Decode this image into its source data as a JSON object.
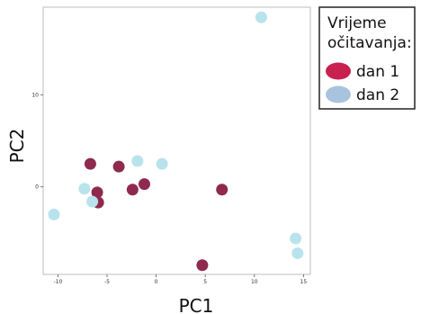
{
  "chart_data": {
    "type": "scatter",
    "xlabel": "PC1",
    "ylabel": "PC2",
    "xlim": [
      -11.5,
      15.7
    ],
    "ylim": [
      -9.5,
      19.5
    ],
    "x_ticks": [
      -10,
      -5,
      0,
      5,
      10,
      15
    ],
    "x_tick_labels": [
      "-10",
      "-5",
      "0",
      "5",
      "10",
      "15"
    ],
    "y_ticks": [
      0,
      10
    ],
    "y_tick_labels": [
      "0",
      "10"
    ],
    "grid": false,
    "legend": {
      "title_lines": [
        "Vrijeme",
        "očitavanja:"
      ],
      "placement": "right"
    },
    "series": [
      {
        "name": "dan 1",
        "color": "#8f2a4e",
        "legend_color": "#c8214f",
        "points": [
          {
            "x": -6.7,
            "y": 2.5
          },
          {
            "x": -3.8,
            "y": 2.2
          },
          {
            "x": -6.0,
            "y": -0.6
          },
          {
            "x": -5.9,
            "y": -1.7
          },
          {
            "x": -2.4,
            "y": -0.3
          },
          {
            "x": -1.2,
            "y": 0.3
          },
          {
            "x": 6.7,
            "y": -0.3
          },
          {
            "x": 4.7,
            "y": -8.5
          }
        ]
      },
      {
        "name": "dan 2",
        "color": "#b8e3ec",
        "legend_color": "#a9c3df",
        "points": [
          {
            "x": 10.7,
            "y": 18.4
          },
          {
            "x": -1.9,
            "y": 2.8
          },
          {
            "x": 0.6,
            "y": 2.5
          },
          {
            "x": -7.3,
            "y": -0.2
          },
          {
            "x": -6.5,
            "y": -1.6
          },
          {
            "x": -10.4,
            "y": -3.0
          },
          {
            "x": 14.2,
            "y": -5.6
          },
          {
            "x": 14.4,
            "y": -7.2
          }
        ]
      }
    ]
  }
}
